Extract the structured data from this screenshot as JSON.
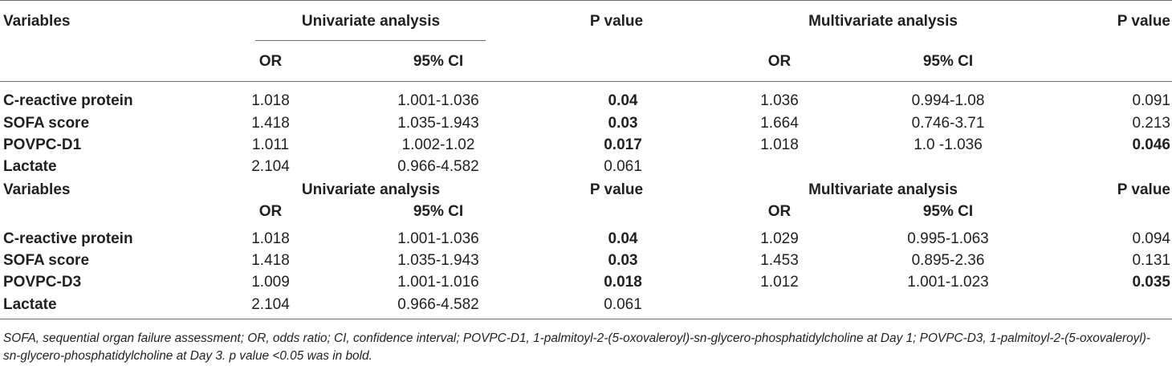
{
  "table": {
    "blocks": [
      {
        "header": {
          "variables": "Variables",
          "univariate": "Univariate analysis",
          "p_value": "P value",
          "multivariate": "Multivariate analysis",
          "p_value_2": "P value",
          "or": "OR",
          "ci": "95% CI",
          "or_2": "OR",
          "ci_2": "95% CI"
        },
        "rows": [
          {
            "variable": "C-reactive protein",
            "or": "1.018",
            "ci": "1.001-1.036",
            "p": "0.04",
            "p_bold": true,
            "m_or": "1.036",
            "m_ci": "0.994-1.08",
            "m_p": "0.091",
            "m_p_bold": false
          },
          {
            "variable": "SOFA score",
            "or": "1.418",
            "ci": "1.035-1.943",
            "p": "0.03",
            "p_bold": true,
            "m_or": "1.664",
            "m_ci": "0.746-3.71",
            "m_p": "0.213",
            "m_p_bold": false
          },
          {
            "variable": "POVPC-D1",
            "or": "1.011",
            "ci": "1.002-1.02",
            "p": "0.017",
            "p_bold": true,
            "m_or": "1.018",
            "m_ci": "1.0 -1.036",
            "m_p": "0.046",
            "m_p_bold": true
          },
          {
            "variable": "Lactate",
            "or": "2.104",
            "ci": "0.966-4.582",
            "p": "0.061",
            "p_bold": false,
            "m_or": "",
            "m_ci": "",
            "m_p": "",
            "m_p_bold": false
          }
        ]
      },
      {
        "header": {
          "variables": "Variables",
          "univariate": "Univariate analysis",
          "p_value": "P value",
          "multivariate": "Multivariate analysis",
          "p_value_2": "P value",
          "or": "OR",
          "ci": "95% CI",
          "or_2": "OR",
          "ci_2": "95% CI"
        },
        "rows": [
          {
            "variable": "C-reactive protein",
            "or": "1.018",
            "ci": "1.001-1.036",
            "p": "0.04",
            "p_bold": true,
            "m_or": "1.029",
            "m_ci": "0.995-1.063",
            "m_p": "0.094",
            "m_p_bold": false
          },
          {
            "variable": "SOFA score",
            "or": "1.418",
            "ci": "1.035-1.943",
            "p": "0.03",
            "p_bold": true,
            "m_or": "1.453",
            "m_ci": "0.895-2.36",
            "m_p": "0.131",
            "m_p_bold": false
          },
          {
            "variable": "POVPC-D3",
            "or": "1.009",
            "ci": "1.001-1.016",
            "p": "0.018",
            "p_bold": true,
            "m_or": "1.012",
            "m_ci": "1.001-1.023",
            "m_p": "0.035",
            "m_p_bold": true
          },
          {
            "variable": "Lactate",
            "or": "2.104",
            "ci": "0.966-4.582",
            "p": "0.061",
            "p_bold": false,
            "m_or": "",
            "m_ci": "",
            "m_p": "",
            "m_p_bold": false
          }
        ]
      }
    ]
  },
  "footnote": "SOFA, sequential organ failure assessment; OR, odds ratio; CI, confidence interval; POVPC-D1, 1-palmitoyl-2-(5-oxovaleroyl)-sn-glycero-phosphatidylcholine at Day 1; POVPC-D3, 1-palmitoyl-2-(5-oxovaleroyl)-sn-glycero-phosphatidylcholine at Day 3. p value <0.05 was in bold."
}
